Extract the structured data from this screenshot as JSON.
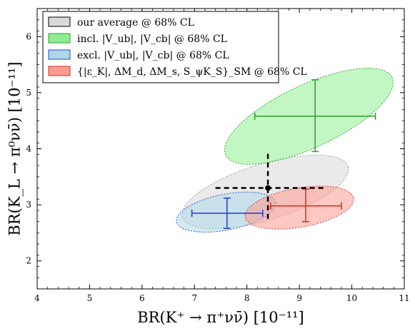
{
  "chart_data": {
    "type": "scatter",
    "title": "",
    "xlabel": "BR(K⁺ → π⁺νν̄) [10⁻¹¹]",
    "ylabel": "BR(K_L → π⁰νν̄) [10⁻¹¹]",
    "xlim": [
      4,
      11
    ],
    "ylim": [
      1.5,
      6.5
    ],
    "xticks": [
      4,
      5,
      6,
      7,
      8,
      9,
      10,
      11
    ],
    "yticks": [
      2,
      3,
      4,
      5,
      6
    ],
    "legend_position": "top-left",
    "grid": false,
    "series": [
      {
        "name": "our average @ 68% CL",
        "fill": "#d9d9d9",
        "edge": "#999999",
        "center": [
          8.4,
          3.3
        ],
        "x_err": [
          7.4,
          9.5
        ],
        "y_err": [
          2.75,
          3.95
        ],
        "error_color": "#000000",
        "error_style": "dashed",
        "ellipse": {
          "cx": 8.35,
          "cy": 3.23,
          "a": 1.65,
          "b": 0.5,
          "angle_deg": 17
        }
      },
      {
        "name": "incl. |V_ub|, |V_cb| @ 68% CL",
        "fill": "#90ee90",
        "edge": "#2e9c2e",
        "center": [
          9.3,
          4.58
        ],
        "x_err": [
          8.15,
          10.45
        ],
        "y_err": [
          3.95,
          5.23
        ],
        "error_color": "#2ca02c",
        "error_style": "solid",
        "ellipse": {
          "cx": 9.18,
          "cy": 4.58,
          "a": 1.75,
          "b": 0.56,
          "angle_deg": 25
        }
      },
      {
        "name": "excl. |V_ub|, |V_cb| @ 68% CL",
        "fill": "#add8e6",
        "edge": "#2a45d6",
        "center": [
          7.62,
          2.85
        ],
        "x_err": [
          6.95,
          8.3
        ],
        "y_err": [
          2.58,
          3.12
        ],
        "error_color": "#1f3ad9",
        "error_style": "solid",
        "ellipse": {
          "cx": 7.6,
          "cy": 2.87,
          "a": 0.96,
          "b": 0.32,
          "angle_deg": 11
        }
      },
      {
        "name": "{|ε_K|, ΔM_d, ΔM_s, S_ψK_S}_SM @ 68% CL",
        "fill": "#ff9a90",
        "edge": "#cc3333",
        "center": [
          9.12,
          2.98
        ],
        "x_err": [
          8.45,
          9.8
        ],
        "y_err": [
          2.7,
          3.28
        ],
        "error_color": "#e0241b",
        "error_style": "solid",
        "ellipse": {
          "cx": 9.0,
          "cy": 2.95,
          "a": 1.05,
          "b": 0.35,
          "angle_deg": 10
        }
      }
    ]
  }
}
